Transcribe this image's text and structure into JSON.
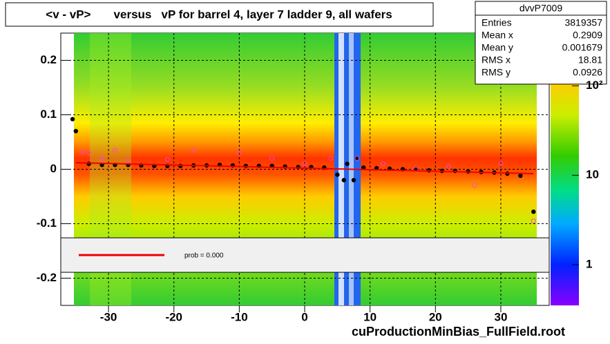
{
  "chart_data": {
    "type": "profile",
    "title": "<v - vP>       versus   vP for barrel 4, layer 7 ladder 9, all wafers",
    "footer": "cuProductionMinBias_FullField.root",
    "xlim": [
      -37.3,
      37.4
    ],
    "ylim": [
      -0.25,
      0.25
    ],
    "xticks": [
      -30,
      -20,
      -10,
      0,
      10,
      20,
      30
    ],
    "yticks": [
      -0.2,
      -0.1,
      0,
      0.1,
      0.2
    ],
    "grid": true,
    "zlog": true,
    "zlim": [
      0.35,
      390
    ],
    "zticks": [
      1,
      10,
      {
        "value": 100,
        "label": "10²"
      }
    ],
    "series": [
      {
        "name": "profile",
        "color": "#000000",
        "marker": "dot",
        "x": [
          -35.5,
          -35,
          -33,
          -31,
          -29,
          -27,
          -25,
          -23,
          -21,
          -19,
          -17,
          -15,
          -13,
          -11,
          -9,
          -7,
          -5,
          -3,
          -1,
          1,
          3,
          5,
          6,
          6.5,
          7.5,
          8,
          9,
          11,
          13,
          15,
          17,
          19,
          21,
          23,
          25,
          27,
          29,
          31,
          33,
          35
        ],
        "values": [
          0.092,
          0.07,
          0.01,
          0.008,
          0.008,
          0.008,
          0.007,
          0.006,
          0.006,
          0.006,
          0.007,
          0.007,
          0.008,
          0.007,
          0.006,
          0.006,
          0.006,
          0.005,
          0.004,
          0.004,
          0.003,
          -0.01,
          -0.02,
          0.01,
          -0.02,
          0.02,
          0.003,
          0.002,
          0.001,
          0,
          0,
          -0.002,
          -0.003,
          -0.003,
          -0.004,
          -0.005,
          -0.006,
          -0.008,
          -0.012,
          -0.078
        ]
      },
      {
        "name": "mean",
        "color": "#ff44cc",
        "marker": "circle",
        "x": [
          -34,
          -33,
          -31,
          -29,
          -27,
          -21,
          -17,
          -10,
          -5,
          0,
          4,
          8,
          12,
          17,
          22,
          26,
          30,
          35
        ],
        "values": [
          0.032,
          0.03,
          0.02,
          0.035,
          0.015,
          0.018,
          0.035,
          0.03,
          0.02,
          0.01,
          0.02,
          0.02,
          0.01,
          0.0,
          0.005,
          -0.03,
          0.01,
          -0.095
        ]
      },
      {
        "name": "fit",
        "color": "#ee0000",
        "marker": "line",
        "x": [
          -35,
          35
        ],
        "values": [
          0.012,
          -0.008
        ]
      }
    ],
    "legend": {
      "label": "prob = 0.000"
    },
    "stats": {
      "title": "dvvP7009",
      "rows": [
        [
          "Entries",
          "3819357"
        ],
        [
          "Mean x",
          "0.2909"
        ],
        [
          "Mean y",
          "0.001679"
        ],
        [
          "RMS x",
          "18.81"
        ],
        [
          "RMS y",
          "0.0926"
        ]
      ]
    }
  }
}
